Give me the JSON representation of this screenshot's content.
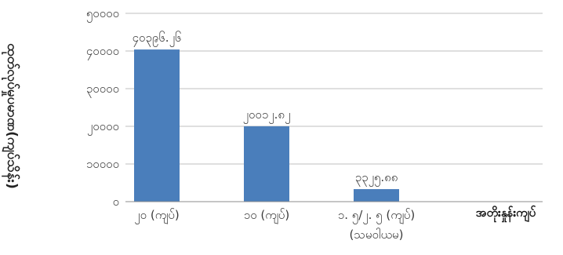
{
  "chart_data": {
    "type": "bar",
    "ylabel": "ထုတ်လုပ်မှုပမာဏ(ကျပ်သိန်း)",
    "xlabel": "အတိုးနှုန်းကျပ်",
    "ylim": [
      0,
      50000
    ],
    "yticks": [
      {
        "value": 0,
        "label": "၀"
      },
      {
        "value": 10000,
        "label": "၁၀၀၀၀"
      },
      {
        "value": 20000,
        "label": "၂၀၀၀၀"
      },
      {
        "value": 30000,
        "label": "၃၀၀၀၀"
      },
      {
        "value": 40000,
        "label": "၄၀၀၀၀"
      },
      {
        "value": 50000,
        "label": "၅၀၀၀၀"
      }
    ],
    "categories": [
      [
        "၂၀ (ကျပ်)"
      ],
      [
        "၁၀ (ကျပ်)"
      ],
      [
        "၁. ၅/၂. ၅ (ကျပ်)",
        "(သမဝါယမ)"
      ]
    ],
    "values": [
      40396.26,
      20012.82,
      3325.88
    ],
    "value_labels": [
      "၄၀၃၉၆.၂၆",
      "၂၀၀၁၂.၈၂",
      "၃၃၂၅.၈၈"
    ],
    "grid": true,
    "colors": {
      "bar": "#4a7ebb",
      "grid": "#bfbfbf",
      "axis": "#8c8c8c"
    }
  }
}
